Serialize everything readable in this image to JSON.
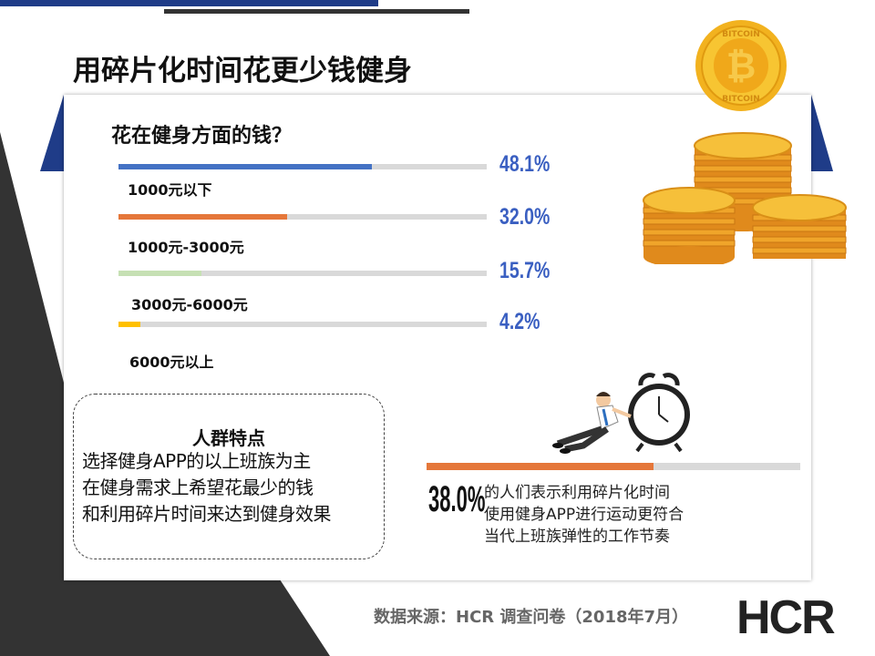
{
  "slide": {
    "title": "用碎片化时间花更少钱健身",
    "source": "数据来源：HCR 调查问卷（2018年7月）",
    "logo_text": "HCR"
  },
  "chart_data": {
    "type": "bar",
    "title": "花在健身方面的钱？",
    "categories": [
      "1000元以下",
      "1000元-3000元",
      "3000元-6000元",
      "6000元以上"
    ],
    "values": [
      48.1,
      32.0,
      15.7,
      4.2
    ],
    "value_labels": [
      "48.1%",
      "32.0%",
      "15.7%",
      "4.2%"
    ],
    "colors": [
      "#4472c4",
      "#e5773a",
      "#c6e0b4",
      "#ffc000"
    ],
    "ylim": [
      0,
      70
    ]
  },
  "traits": {
    "title": "人群特点",
    "lines": [
      "选择健身APP的以上班族为主",
      "在健身需求上希望花最少的钱",
      "和利用碎片时间来达到健身效果"
    ]
  },
  "stat": {
    "value": 38.0,
    "value_label": "38.0%",
    "lines": [
      "的人们表示利用碎片化时间",
      "使用健身APP进行运动更符合",
      "当代上班族弹性的工作节奏"
    ]
  },
  "coin": {
    "text": "BITCOIN"
  },
  "colors": {
    "accent_blue": "#1f3c88",
    "dark": "#333333",
    "stat_orange": "#e5773a",
    "value_blue": "#3a5fc1"
  }
}
